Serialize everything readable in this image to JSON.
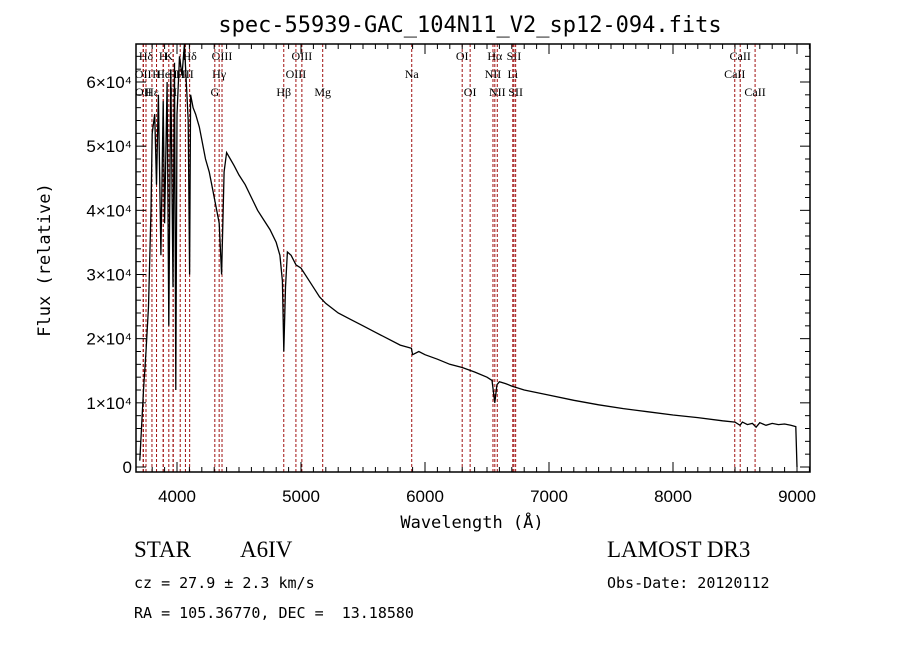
{
  "chart_data": {
    "type": "line",
    "title": "spec-55939-GAC_104N11_V2_sp12-094.fits",
    "xlabel": "Wavelength (Å)",
    "ylabel": "Flux (relative)",
    "xlim": [
      3700,
      9100
    ],
    "ylim": [
      0,
      65000
    ],
    "x_ticks": [
      4000,
      5000,
      6000,
      7000,
      8000,
      9000
    ],
    "x_tick_labels": [
      "4000",
      "5000",
      "6000",
      "7000",
      "8000",
      "9000"
    ],
    "y_ticks": [
      0,
      10000,
      20000,
      30000,
      40000,
      50000,
      60000
    ],
    "y_tick_labels": [
      "0",
      "1×10⁴",
      "2×10⁴",
      "3×10⁴",
      "4×10⁴",
      "5×10⁴",
      "6×10⁴"
    ],
    "grid": false,
    "series": [
      {
        "name": "spectrum",
        "x": [
          3700,
          3730,
          3750,
          3770,
          3790,
          3800,
          3820,
          3835,
          3850,
          3870,
          3889,
          3900,
          3920,
          3934,
          3950,
          3968,
          3980,
          3990,
          4000,
          4020,
          4040,
          4060,
          4090,
          4102,
          4110,
          4130,
          4150,
          4180,
          4200,
          4230,
          4260,
          4290,
          4320,
          4340,
          4360,
          4380,
          4400,
          4430,
          4460,
          4500,
          4550,
          4600,
          4650,
          4700,
          4750,
          4800,
          4830,
          4850,
          4861,
          4875,
          4890,
          4920,
          4960,
          5000,
          5050,
          5100,
          5150,
          5200,
          5300,
          5400,
          5500,
          5600,
          5700,
          5800,
          5890,
          5900,
          5950,
          6000,
          6100,
          6200,
          6300,
          6400,
          6500,
          6540,
          6563,
          6580,
          6600,
          6650,
          6700,
          6800,
          7000,
          7200,
          7400,
          7600,
          7800,
          8000,
          8200,
          8400,
          8500,
          8540,
          8560,
          8600,
          8640,
          8670,
          8700,
          8750,
          8800,
          8850,
          8900,
          8950,
          8990,
          9000
        ],
        "y": [
          1000,
          12000,
          18000,
          25000,
          40000,
          52000,
          55000,
          44000,
          58000,
          33000,
          57000,
          38000,
          60000,
          22000,
          62000,
          28000,
          63000,
          12000,
          55000,
          64000,
          61000,
          66000,
          54000,
          30000,
          58000,
          56000,
          55000,
          53000,
          51000,
          48000,
          46000,
          43000,
          40000,
          38000,
          30000,
          46000,
          49000,
          48000,
          47000,
          45500,
          44000,
          42000,
          40000,
          38500,
          37000,
          35000,
          33000,
          29000,
          18000,
          28000,
          33500,
          33000,
          31500,
          31000,
          29500,
          28000,
          26500,
          25500,
          24000,
          23000,
          22000,
          21000,
          20000,
          19000,
          18500,
          17500,
          18000,
          17500,
          16800,
          16000,
          15500,
          14800,
          14000,
          13500,
          10000,
          12800,
          13300,
          13000,
          12600,
          12000,
          11200,
          10400,
          9700,
          9100,
          8600,
          8100,
          7700,
          7200,
          7000,
          6500,
          7000,
          6600,
          6800,
          6200,
          6900,
          6500,
          6800,
          6600,
          6700,
          6500,
          6300,
          0
        ]
      }
    ],
    "line_markers": [
      {
        "name": "Hδ",
        "wavelength": 3750,
        "row": 0
      },
      {
        "name": "OII",
        "wavelength": 3727,
        "row": 1
      },
      {
        "name": "OII",
        "wavelength": 3729,
        "row": 2
      },
      {
        "name": "Hε",
        "wavelength": 3798,
        "row": 2
      },
      {
        "name": "H",
        "wavelength": 3835,
        "row": 1
      },
      {
        "name": "K",
        "wavelength": 3934,
        "row": 0
      },
      {
        "name": "H",
        "wavelength": 3889,
        "row": 0
      },
      {
        "name": "He",
        "wavelength": 3889,
        "row": 1
      },
      {
        "name": "H",
        "wavelength": 3968,
        "row": 1
      },
      {
        "name": "II",
        "wavelength": 3970,
        "row": 2
      },
      {
        "name": "H",
        "wavelength": 4026,
        "row": 1
      },
      {
        "name": "Hδ",
        "wavelength": 4102,
        "row": 0
      },
      {
        "name": "HII",
        "wavelength": 4068,
        "row": 1
      },
      {
        "name": "OIII",
        "wavelength": 4363,
        "row": 0
      },
      {
        "name": "Hγ",
        "wavelength": 4340,
        "row": 1
      },
      {
        "name": "G",
        "wavelength": 4305,
        "row": 2
      },
      {
        "name": "Hβ",
        "wavelength": 4861,
        "row": 2
      },
      {
        "name": "OIII",
        "wavelength": 4959,
        "row": 1
      },
      {
        "name": "OIII",
        "wavelength": 5007,
        "row": 0
      },
      {
        "name": "Mg",
        "wavelength": 5175,
        "row": 2
      },
      {
        "name": "Na",
        "wavelength": 5893,
        "row": 1
      },
      {
        "name": "OI",
        "wavelength": 6300,
        "row": 0
      },
      {
        "name": "OI",
        "wavelength": 6364,
        "row": 2
      },
      {
        "name": "Hα",
        "wavelength": 6563,
        "row": 0
      },
      {
        "name": "NII",
        "wavelength": 6548,
        "row": 1
      },
      {
        "name": "NII",
        "wavelength": 6583,
        "row": 2
      },
      {
        "name": "SII",
        "wavelength": 6717,
        "row": 0
      },
      {
        "name": "Li",
        "wavelength": 6708,
        "row": 1
      },
      {
        "name": "SII",
        "wavelength": 6731,
        "row": 2
      },
      {
        "name": "CaII",
        "wavelength": 8542,
        "row": 0
      },
      {
        "name": "CaII",
        "wavelength": 8498,
        "row": 1
      },
      {
        "name": "CaII",
        "wavelength": 8662,
        "row": 2
      }
    ]
  },
  "info": {
    "object_class": "STAR",
    "subclass": "A6IV",
    "redshift_text": "cz = 27.9 ± 2.3 km/s",
    "coords_text": "RA = 105.36770, DEC =  13.18580",
    "survey": "LAMOST DR3",
    "obs_date_text": "Obs-Date: 20120112"
  },
  "colors": {
    "line_marker": "#a01010",
    "spectrum": "#000000"
  }
}
